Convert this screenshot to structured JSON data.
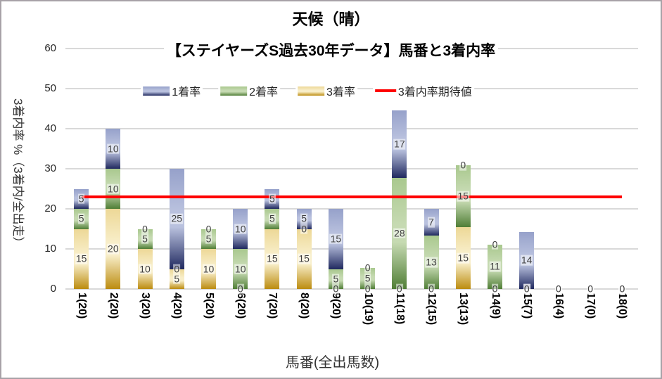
{
  "title": "天候（晴）",
  "subtitle": "【ステイヤーズS過去30年データ】馬番と3着内率",
  "y_axis": {
    "title": "3着内率 %（3着内/全出走）",
    "ticks": [
      0,
      10,
      20,
      30,
      40,
      50,
      60
    ],
    "max": 60
  },
  "x_axis": {
    "title": "馬番(全出馬数)"
  },
  "legend": [
    {
      "label": "1着率",
      "type": "box",
      "color_key": "win"
    },
    {
      "label": "2着率",
      "type": "box",
      "color_key": "second"
    },
    {
      "label": "3着率",
      "type": "box",
      "color_key": "third"
    },
    {
      "label": "3着内率期待値",
      "type": "line",
      "color_key": "expected"
    }
  ],
  "colors": {
    "win": {
      "mid": "#96a1ca",
      "light": "#b9c1de",
      "dark": "#20295f"
    },
    "second": {
      "mid": "#a9c88e",
      "light": "#c6dab2",
      "dark": "#507e36"
    },
    "third": {
      "mid": "#edd897",
      "light": "#f8eec9",
      "dark": "#bc8c10"
    },
    "expected": "#fe0000",
    "gridline": "#d9d9d9"
  },
  "chart_data": {
    "type": "bar",
    "stacked": true,
    "title": "天候（晴）【ステイヤーズS過去30年データ】馬番と3着内率",
    "xlabel": "馬番(全出馬数)",
    "ylabel": "3着内率 %（3着内/全出走）",
    "ylim": [
      0,
      60
    ],
    "yticks": [
      0,
      10,
      20,
      30,
      40,
      50,
      60
    ],
    "grid": true,
    "legend_position": "top",
    "categories": [
      "1(20)",
      "2(20)",
      "3(20)",
      "4(20)",
      "5(20)",
      "6(20)",
      "7(20)",
      "8(20)",
      "9(20)",
      "10(19)",
      "11(18)",
      "12(15)",
      "13(13)",
      "14(9)",
      "15(7)",
      "16(4)",
      "17(0)",
      "18(0)"
    ],
    "series": [
      {
        "name": "3着率",
        "color_key": "third",
        "values": [
          15,
          20,
          10,
          5,
          10,
          0,
          15,
          15,
          0,
          0,
          0,
          0,
          15.4,
          0,
          0,
          0,
          0,
          0
        ],
        "labels": [
          "15",
          "20",
          "10",
          "5",
          "10",
          "0",
          "15",
          "15",
          "0",
          "0",
          "0",
          "0",
          "15",
          "0",
          "0",
          "0",
          "0",
          "0"
        ]
      },
      {
        "name": "2着率",
        "color_key": "second",
        "values": [
          5,
          10,
          5,
          0,
          5,
          10,
          5,
          0,
          5,
          5.3,
          27.8,
          13.3,
          15.4,
          11.1,
          0,
          0,
          0,
          0
        ],
        "labels": [
          "5",
          "10",
          "5",
          "0",
          "5",
          "10",
          "5",
          "0",
          "5",
          "5",
          "28",
          "13",
          "15",
          "11",
          "0",
          "0",
          "0",
          "0"
        ]
      },
      {
        "name": "1着率",
        "color_key": "win",
        "values": [
          5,
          10,
          0,
          25,
          0,
          10,
          5,
          5,
          15,
          0,
          16.7,
          6.7,
          0,
          0,
          14.3,
          0,
          0,
          0
        ],
        "labels": [
          "5",
          "10",
          "0",
          "25",
          "0",
          "10",
          "5",
          "5",
          "15",
          "0",
          "17",
          "7",
          "0",
          "0",
          "14",
          "0",
          "0",
          "0"
        ]
      }
    ],
    "expected_line": {
      "label": "3着内率期待値",
      "value": 23,
      "span_categories": [
        1,
        18
      ]
    }
  }
}
